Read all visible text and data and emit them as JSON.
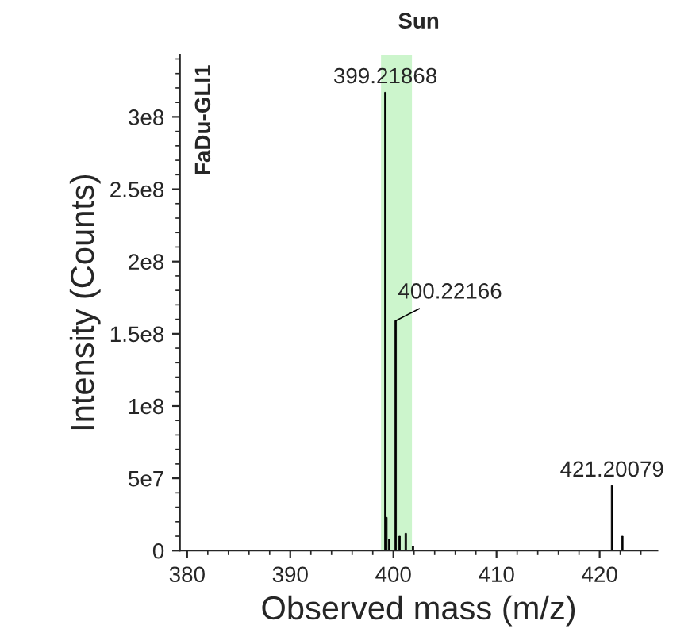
{
  "chart_data": {
    "type": "bar",
    "title": "Sun",
    "xlabel": "Observed mass (m/z)",
    "ylabel": "Intensity (Counts)",
    "x": [
      399.21868,
      399.32,
      399.6,
      400.22166,
      400.6,
      401.2,
      401.9,
      421.20079,
      422.2
    ],
    "values": [
      317000000,
      23000000,
      8000000,
      159000000,
      10000000,
      12000000,
      3000000,
      45000000,
      10000000
    ],
    "color": "#000000",
    "xlim": [
      379.3,
      425.6
    ],
    "xticks": [
      380,
      390,
      400,
      410,
      420
    ],
    "ylim": [
      0,
      343000000
    ],
    "yticks": [
      {
        "value": 0,
        "label": "0"
      },
      {
        "value": 50000000,
        "label": "5e7"
      },
      {
        "value": 100000000,
        "label": "1e8"
      },
      {
        "value": 150000000,
        "label": "1.5e8"
      },
      {
        "value": 200000000,
        "label": "2e8"
      },
      {
        "value": 250000000,
        "label": "2.5e8"
      },
      {
        "value": 300000000,
        "label": "3e8"
      }
    ],
    "bands": [
      {
        "axis": "x",
        "from": 398.8,
        "to": 401.8,
        "color": "#ccf5cc"
      }
    ],
    "annotations": [
      "FaDu-GLI1",
      {
        "text": "399.21868",
        "x": 399.21868,
        "y": 317000000
      },
      {
        "text": "400.22166",
        "x": 400.22166,
        "y": 159000000
      },
      {
        "text": "421.20079",
        "x": 421.20079,
        "y": 45000000
      }
    ],
    "grid": false,
    "legend": false
  }
}
